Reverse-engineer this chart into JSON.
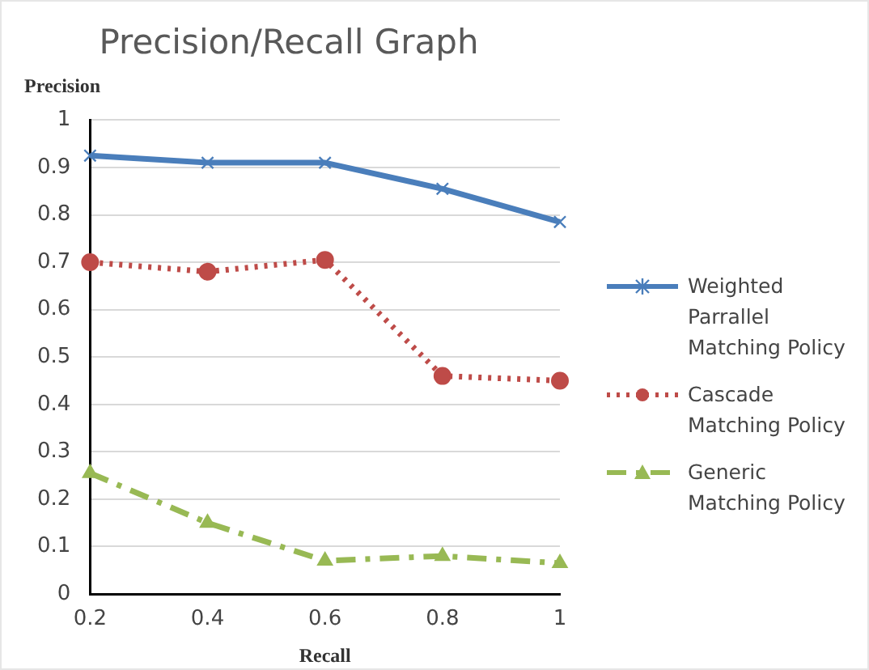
{
  "chart_data": {
    "type": "line",
    "title": "Precision/Recall Graph",
    "xlabel": "Recall",
    "ylabel": "Precision",
    "categories": [
      "0.2",
      "0.4",
      "0.6",
      "0.8",
      "1"
    ],
    "series": [
      {
        "name": "Weighted Parrallel Matching Policy",
        "color": "#4a7ebb",
        "marker": "cross",
        "line_style": "solid",
        "values": [
          0.925,
          0.91,
          0.91,
          0.855,
          0.785
        ]
      },
      {
        "name": "Cascade Matching Policy",
        "color": "#be4b48",
        "marker": "circle",
        "line_style": "dotted",
        "values": [
          0.7,
          0.68,
          0.705,
          0.46,
          0.45
        ]
      },
      {
        "name": "Generic Matching Policy",
        "color": "#98b954",
        "marker": "triangle",
        "line_style": "dashed",
        "values": [
          0.255,
          0.15,
          0.07,
          0.08,
          0.065
        ]
      }
    ],
    "ylim": [
      0,
      1
    ],
    "yticks": [
      0,
      0.1,
      0.2,
      0.3,
      0.4,
      0.5,
      0.6,
      0.7,
      0.8,
      0.9,
      1
    ],
    "grid": "y",
    "legend": "right"
  }
}
